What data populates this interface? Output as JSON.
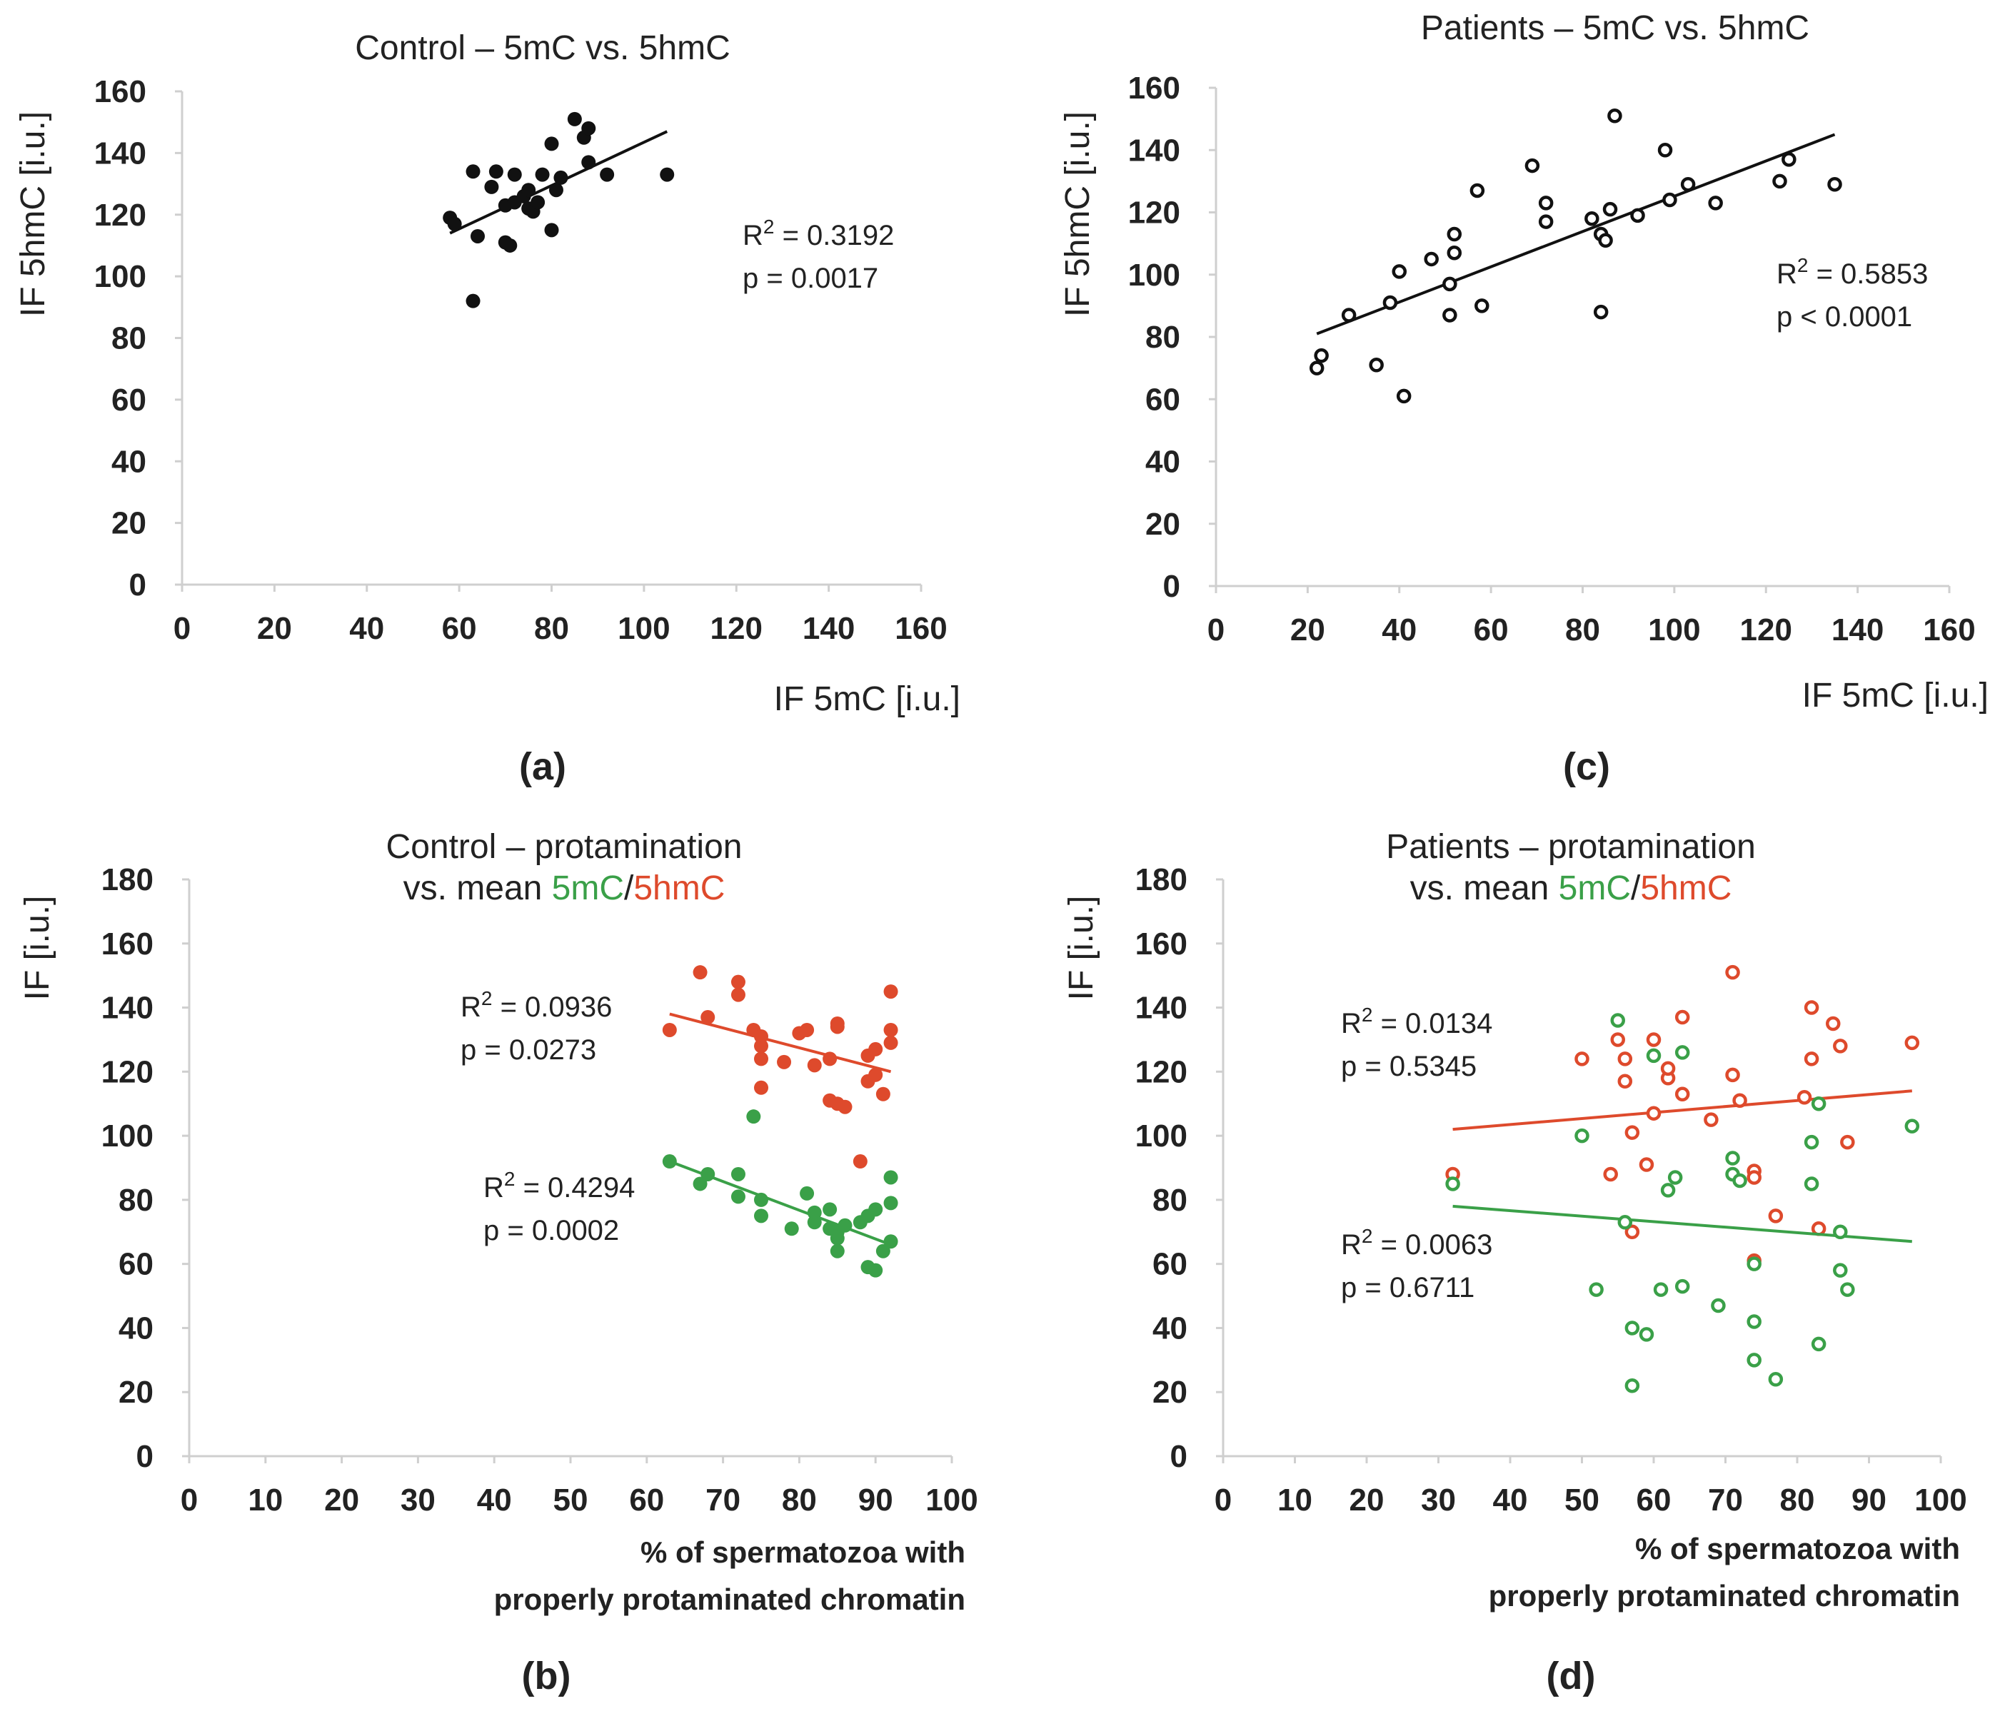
{
  "colors": {
    "black": "#111111",
    "green": "#3aa048",
    "red": "#de4a2c",
    "sig": "#e8332a",
    "text": "#222222"
  },
  "chart_data": [
    {
      "id": "a",
      "type": "scatter",
      "panel_label": "(a)",
      "title_lines": [
        [
          {
            "text": "Control – 5mC vs. 5hmC",
            "color": "text"
          }
        ]
      ],
      "xlabel_lines": [
        "IF 5mC [i.u.]"
      ],
      "ylabel": "IF 5hmC [i.u.]",
      "xlim": [
        0,
        160
      ],
      "ylim": [
        0,
        160
      ],
      "xticks": [
        0,
        20,
        40,
        60,
        80,
        100,
        120,
        140,
        160
      ],
      "yticks": [
        0,
        20,
        40,
        60,
        80,
        100,
        120,
        140,
        160
      ],
      "series": [
        {
          "name": "Control",
          "color": "black",
          "marker": "filled",
          "points": [
            [
              58,
              119
            ],
            [
              59,
              117
            ],
            [
              63,
              134
            ],
            [
              64,
              113
            ],
            [
              63,
              92
            ],
            [
              67,
              129
            ],
            [
              68,
              134
            ],
            [
              70,
              123
            ],
            [
              70,
              111
            ],
            [
              71,
              110
            ],
            [
              72,
              133
            ],
            [
              72,
              124
            ],
            [
              74,
              126
            ],
            [
              75,
              128
            ],
            [
              75,
              122
            ],
            [
              76,
              121
            ],
            [
              77,
              124
            ],
            [
              78,
              133
            ],
            [
              80,
              115
            ],
            [
              80,
              143
            ],
            [
              81,
              128
            ],
            [
              82,
              132
            ],
            [
              85,
              151
            ],
            [
              87,
              145
            ],
            [
              88,
              148
            ],
            [
              88,
              137
            ],
            [
              92,
              133
            ],
            [
              105,
              133
            ]
          ],
          "trend": [
            [
              58,
              114
            ],
            [
              105,
              147
            ]
          ],
          "r2": "R² = 0.3192",
          "p": "p = 0.0017",
          "p_color": "sig"
        }
      ]
    },
    {
      "id": "c",
      "type": "scatter",
      "panel_label": "(c)",
      "title_lines": [
        [
          {
            "text": "Patients – 5mC vs. 5hmC",
            "color": "text"
          }
        ]
      ],
      "xlabel_lines": [
        "IF 5mC [i.u.]"
      ],
      "ylabel": "IF 5hmC [i.u.]",
      "xlim": [
        0,
        160
      ],
      "ylim": [
        0,
        160
      ],
      "xticks": [
        0,
        20,
        40,
        60,
        80,
        100,
        120,
        140,
        160
      ],
      "yticks": [
        0,
        20,
        40,
        60,
        80,
        100,
        120,
        140,
        160
      ],
      "series": [
        {
          "name": "Patients",
          "color": "black",
          "marker": "open",
          "points": [
            [
              22,
              70
            ],
            [
              23,
              74
            ],
            [
              29,
              87
            ],
            [
              35,
              71
            ],
            [
              38,
              91
            ],
            [
              40,
              101
            ],
            [
              41,
              61
            ],
            [
              47,
              105
            ],
            [
              51,
              87
            ],
            [
              51,
              97
            ],
            [
              52,
              107
            ],
            [
              52,
              113
            ],
            [
              57,
              127
            ],
            [
              58,
              90
            ],
            [
              69,
              135
            ],
            [
              72,
              123
            ],
            [
              72,
              117
            ],
            [
              82,
              118
            ],
            [
              84,
              113
            ],
            [
              85,
              111
            ],
            [
              84,
              88
            ],
            [
              86,
              121
            ],
            [
              87,
              151
            ],
            [
              92,
              119
            ],
            [
              98,
              140
            ],
            [
              99,
              124
            ],
            [
              103,
              129
            ],
            [
              109,
              123
            ],
            [
              123,
              130
            ],
            [
              125,
              137
            ],
            [
              135,
              129
            ]
          ],
          "trend": [
            [
              22,
              81
            ],
            [
              135,
              145
            ]
          ],
          "r2": "R² = 0.5853",
          "p": "p < 0.0001",
          "p_color": "sig"
        }
      ]
    },
    {
      "id": "b",
      "type": "scatter",
      "panel_label": "(b)",
      "title_lines": [
        [
          {
            "text": "Control – protamination",
            "color": "text"
          }
        ],
        [
          {
            "text": "vs. mean ",
            "color": "text"
          },
          {
            "text": "5mC",
            "color": "green"
          },
          {
            "text": "/",
            "color": "text"
          },
          {
            "text": "5hmC",
            "color": "red"
          }
        ]
      ],
      "xlabel_lines": [
        "% of spermatozoa with",
        "properly protaminated chromatin"
      ],
      "ylabel": "IF [i.u.]",
      "xlim": [
        0,
        100
      ],
      "ylim": [
        0,
        180
      ],
      "xticks": [
        0,
        10,
        20,
        30,
        40,
        50,
        60,
        70,
        80,
        90,
        100
      ],
      "yticks": [
        0,
        20,
        40,
        60,
        80,
        100,
        120,
        140,
        160,
        180
      ],
      "series": [
        {
          "name": "5hmC",
          "color": "red",
          "marker": "filled",
          "points": [
            [
              63,
              133
            ],
            [
              67,
              151
            ],
            [
              68,
              137
            ],
            [
              72,
              148
            ],
            [
              72,
              144
            ],
            [
              74,
              133
            ],
            [
              75,
              131
            ],
            [
              75,
              128
            ],
            [
              75,
              124
            ],
            [
              75,
              115
            ],
            [
              78,
              123
            ],
            [
              80,
              132
            ],
            [
              81,
              133
            ],
            [
              82,
              122
            ],
            [
              84,
              124
            ],
            [
              84,
              111
            ],
            [
              85,
              110
            ],
            [
              85,
              135
            ],
            [
              85,
              134
            ],
            [
              86,
              109
            ],
            [
              88,
              92
            ],
            [
              89,
              125
            ],
            [
              89,
              117
            ],
            [
              90,
              119
            ],
            [
              90,
              127
            ],
            [
              91,
              113
            ],
            [
              92,
              145
            ],
            [
              92,
              133
            ],
            [
              92,
              129
            ]
          ],
          "trend": [
            [
              63,
              138
            ],
            [
              92,
              120
            ]
          ],
          "r2": "R² = 0.0936",
          "p": "p = 0.0273",
          "p_color": "sig"
        },
        {
          "name": "5mC",
          "color": "green",
          "marker": "filled",
          "points": [
            [
              63,
              92
            ],
            [
              67,
              85
            ],
            [
              68,
              88
            ],
            [
              72,
              88
            ],
            [
              72,
              81
            ],
            [
              74,
              106
            ],
            [
              75,
              80
            ],
            [
              75,
              75
            ],
            [
              79,
              71
            ],
            [
              81,
              82
            ],
            [
              82,
              73
            ],
            [
              82,
              76
            ],
            [
              84,
              77
            ],
            [
              84,
              71
            ],
            [
              85,
              64
            ],
            [
              85,
              70
            ],
            [
              85,
              68
            ],
            [
              86,
              72
            ],
            [
              88,
              73
            ],
            [
              89,
              59
            ],
            [
              89,
              75
            ],
            [
              90,
              58
            ],
            [
              90,
              77
            ],
            [
              91,
              64
            ],
            [
              92,
              87
            ],
            [
              92,
              79
            ],
            [
              92,
              67
            ]
          ],
          "trend": [
            [
              63,
              92
            ],
            [
              92,
              66
            ]
          ],
          "r2": "R² = 0.4294",
          "p": "p = 0.0002",
          "p_color": "sig"
        }
      ]
    },
    {
      "id": "d",
      "type": "scatter",
      "panel_label": "(d)",
      "title_lines": [
        [
          {
            "text": "Patients – protamination",
            "color": "text"
          }
        ],
        [
          {
            "text": "vs. mean ",
            "color": "text"
          },
          {
            "text": "5mC",
            "color": "green"
          },
          {
            "text": "/",
            "color": "text"
          },
          {
            "text": "5hmC",
            "color": "red"
          }
        ]
      ],
      "xlabel_lines": [
        "% of spermatozoa with",
        "properly protaminated chromatin"
      ],
      "ylabel": "IF [i.u.]",
      "xlim": [
        0,
        100
      ],
      "ylim": [
        0,
        180
      ],
      "xticks": [
        0,
        10,
        20,
        30,
        40,
        50,
        60,
        70,
        80,
        90,
        100
      ],
      "yticks": [
        0,
        20,
        40,
        60,
        80,
        100,
        120,
        140,
        160,
        180
      ],
      "series": [
        {
          "name": "5hmC",
          "color": "red",
          "marker": "open",
          "points": [
            [
              32,
              88
            ],
            [
              50,
              124
            ],
            [
              54,
              88
            ],
            [
              55,
              130
            ],
            [
              56,
              117
            ],
            [
              56,
              124
            ],
            [
              57,
              70
            ],
            [
              57,
              101
            ],
            [
              59,
              91
            ],
            [
              60,
              130
            ],
            [
              60,
              107
            ],
            [
              62,
              118
            ],
            [
              62,
              121
            ],
            [
              64,
              137
            ],
            [
              64,
              113
            ],
            [
              68,
              105
            ],
            [
              71,
              151
            ],
            [
              71,
              119
            ],
            [
              72,
              111
            ],
            [
              74,
              89
            ],
            [
              74,
              61
            ],
            [
              74,
              87
            ],
            [
              77,
              75
            ],
            [
              81,
              112
            ],
            [
              82,
              124
            ],
            [
              82,
              140
            ],
            [
              83,
              71
            ],
            [
              85,
              135
            ],
            [
              86,
              128
            ],
            [
              87,
              98
            ],
            [
              96,
              129
            ]
          ],
          "trend": [
            [
              32,
              102
            ],
            [
              96,
              114
            ]
          ],
          "r2": "R² = 0.0134",
          "p": "p = 0.5345",
          "p_color": "text"
        },
        {
          "name": "5mC",
          "color": "green",
          "marker": "open",
          "points": [
            [
              32,
              85
            ],
            [
              50,
              100
            ],
            [
              52,
              52
            ],
            [
              55,
              136
            ],
            [
              56,
              73
            ],
            [
              57,
              40
            ],
            [
              57,
              22
            ],
            [
              59,
              38
            ],
            [
              60,
              125
            ],
            [
              61,
              52
            ],
            [
              62,
              83
            ],
            [
              63,
              87
            ],
            [
              64,
              126
            ],
            [
              64,
              53
            ],
            [
              69,
              47
            ],
            [
              71,
              88
            ],
            [
              71,
              93
            ],
            [
              72,
              86
            ],
            [
              74,
              60
            ],
            [
              74,
              42
            ],
            [
              74,
              30
            ],
            [
              77,
              24
            ],
            [
              82,
              85
            ],
            [
              82,
              98
            ],
            [
              83,
              110
            ],
            [
              83,
              35
            ],
            [
              86,
              58
            ],
            [
              86,
              70
            ],
            [
              87,
              52
            ],
            [
              96,
              103
            ]
          ],
          "trend": [
            [
              32,
              78
            ],
            [
              96,
              67
            ]
          ],
          "r2": "R² = 0.0063",
          "p": "p = 0.6711",
          "p_color": "text"
        }
      ]
    }
  ]
}
